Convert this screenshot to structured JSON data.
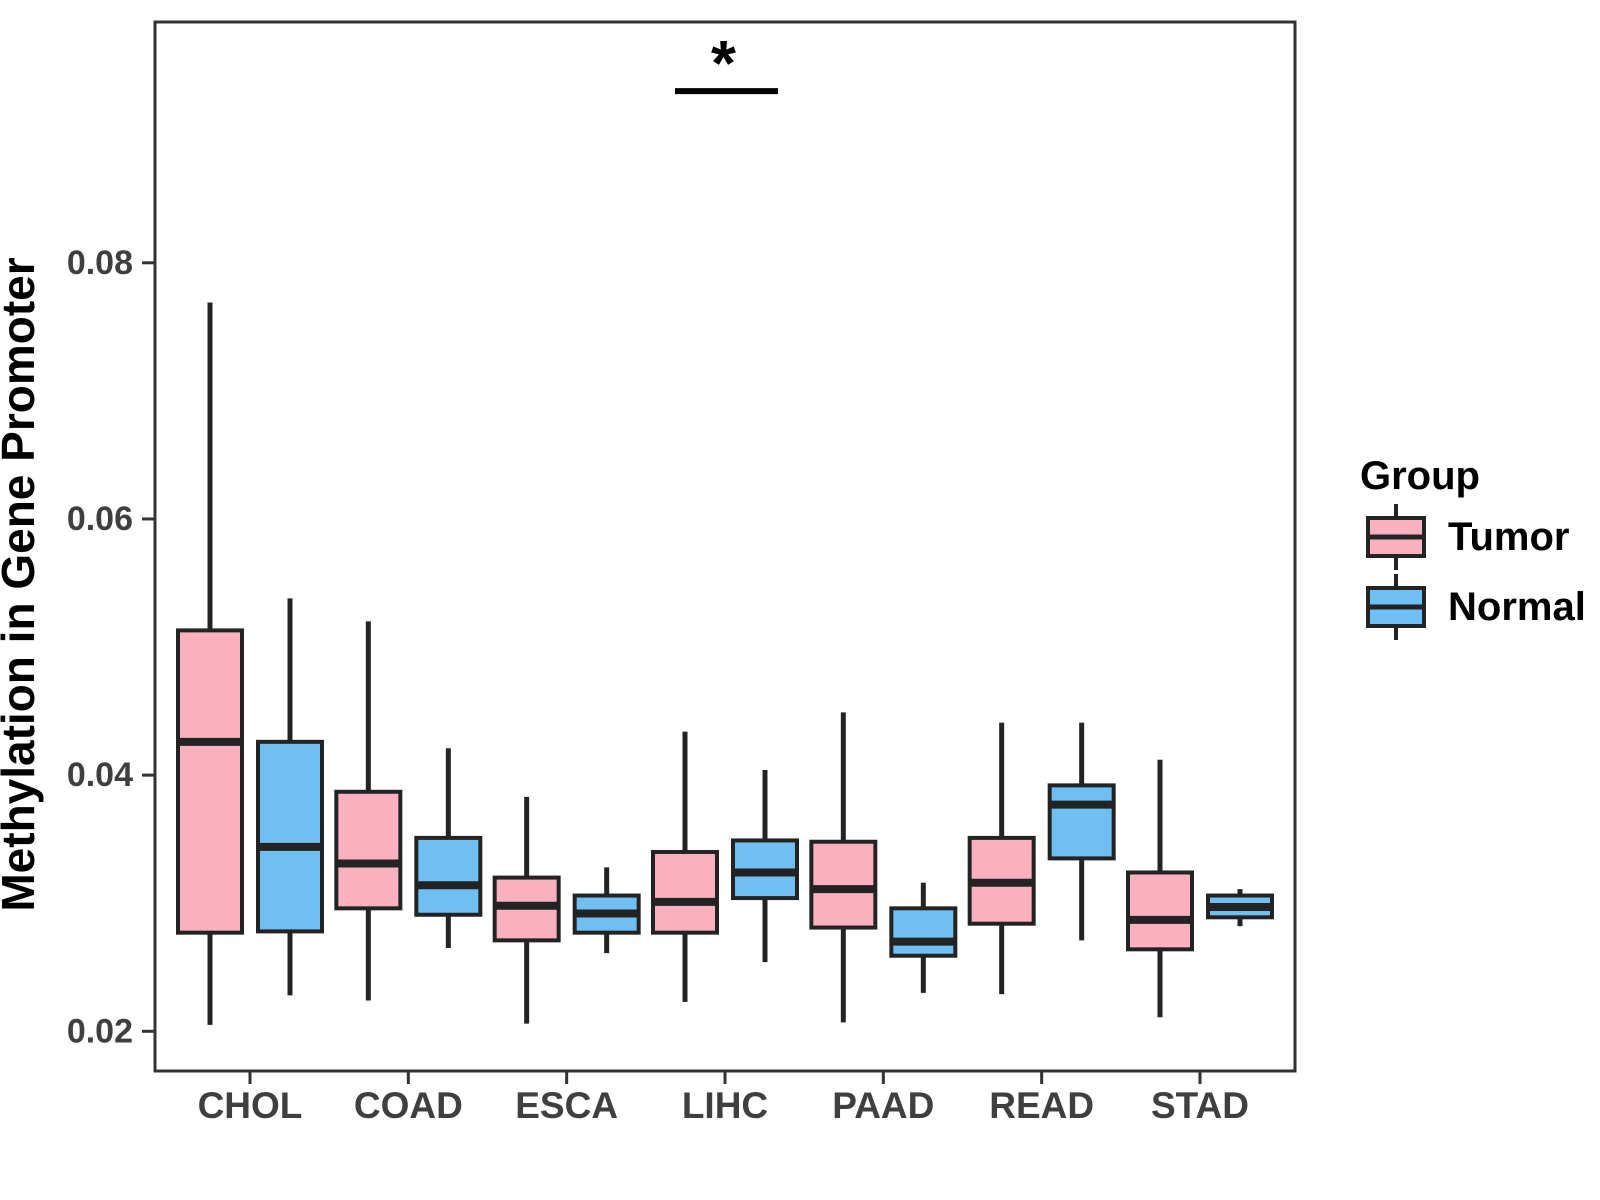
{
  "figure": {
    "y_axis_title": "Methylation in Gene Promoter",
    "legend": {
      "title": "Group",
      "items": [
        {
          "label": "Tumor",
          "color": "#F9B1BF"
        },
        {
          "label": "Normal",
          "color": "#70BFF2"
        }
      ]
    },
    "colors": {
      "box_outline": "#232323",
      "panel_border": "#333333",
      "tick_label": "#3f3f3f",
      "axis_title": "#000000",
      "annotation": "#000000"
    }
  },
  "chart_data": {
    "type": "boxplot",
    "title": "",
    "xlabel": "",
    "ylabel": "Methylation in Gene Promoter",
    "categories": [
      "CHOL",
      "COAD",
      "ESCA",
      "LIHC",
      "PAAD",
      "READ",
      "STAD"
    ],
    "y_ticks": [
      0.02,
      0.04,
      0.06,
      0.08
    ],
    "ylim": [
      0.0169,
      0.0988
    ],
    "grid": false,
    "legend_position": "right",
    "series": [
      {
        "name": "Tumor",
        "color": "#F9B1BF",
        "boxes": [
          {
            "category": "CHOL",
            "whisker_low": 0.0205,
            "q1": 0.0277,
            "median": 0.0426,
            "q3": 0.0513,
            "whisker_high": 0.0769
          },
          {
            "category": "COAD",
            "whisker_low": 0.0224,
            "q1": 0.0296,
            "median": 0.0331,
            "q3": 0.0387,
            "whisker_high": 0.052
          },
          {
            "category": "ESCA",
            "whisker_low": 0.0206,
            "q1": 0.0271,
            "median": 0.0298,
            "q3": 0.032,
            "whisker_high": 0.0383
          },
          {
            "category": "LIHC",
            "whisker_low": 0.0223,
            "q1": 0.0277,
            "median": 0.0301,
            "q3": 0.034,
            "whisker_high": 0.0434
          },
          {
            "category": "PAAD",
            "whisker_low": 0.0207,
            "q1": 0.0281,
            "median": 0.0311,
            "q3": 0.0348,
            "whisker_high": 0.0449
          },
          {
            "category": "READ",
            "whisker_low": 0.0229,
            "q1": 0.0284,
            "median": 0.0316,
            "q3": 0.0351,
            "whisker_high": 0.0441
          },
          {
            "category": "STAD",
            "whisker_low": 0.0211,
            "q1": 0.0264,
            "median": 0.0287,
            "q3": 0.0324,
            "whisker_high": 0.0412
          }
        ]
      },
      {
        "name": "Normal",
        "color": "#70BFF2",
        "boxes": [
          {
            "category": "CHOL",
            "whisker_low": 0.0228,
            "q1": 0.0278,
            "median": 0.0344,
            "q3": 0.0426,
            "whisker_high": 0.0538
          },
          {
            "category": "COAD",
            "whisker_low": 0.0265,
            "q1": 0.0291,
            "median": 0.0314,
            "q3": 0.0351,
            "whisker_high": 0.0421
          },
          {
            "category": "ESCA",
            "whisker_low": 0.0261,
            "q1": 0.0277,
            "median": 0.0292,
            "q3": 0.0306,
            "whisker_high": 0.0328
          },
          {
            "category": "LIHC",
            "whisker_low": 0.0254,
            "q1": 0.0304,
            "median": 0.0324,
            "q3": 0.0349,
            "whisker_high": 0.0404
          },
          {
            "category": "PAAD",
            "whisker_low": 0.023,
            "q1": 0.0259,
            "median": 0.027,
            "q3": 0.0296,
            "whisker_high": 0.0316
          },
          {
            "category": "READ",
            "whisker_low": 0.0271,
            "q1": 0.0335,
            "median": 0.0377,
            "q3": 0.0392,
            "whisker_high": 0.0441
          },
          {
            "category": "STAD",
            "whisker_low": 0.0282,
            "q1": 0.0289,
            "median": 0.0297,
            "q3": 0.0306,
            "whisker_high": 0.0311
          }
        ]
      }
    ],
    "annotations": [
      {
        "type": "significance-bar",
        "category": "LIHC",
        "label": "*",
        "y": 0.0934
      }
    ]
  }
}
